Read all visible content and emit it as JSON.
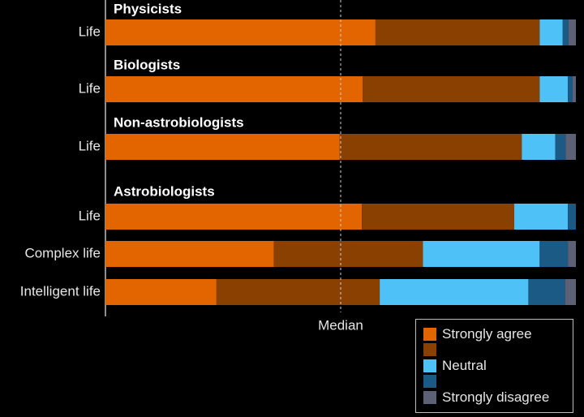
{
  "chart_data": {
    "type": "bar",
    "orientation": "horizontal",
    "stacked": true,
    "xlim": [
      0,
      100
    ],
    "categories": [
      "Physicists – Life",
      "Biologists – Life",
      "Non-astrobiologists – Life",
      "Astrobiologists – Life",
      "Astrobiologists – Complex life",
      "Astrobiologists – Intelligent life"
    ],
    "groups": [
      {
        "label": "Physicists",
        "rows": [
          {
            "label": "Life",
            "values": [
              57.4,
              34.9,
              4.9,
              1.2,
              1.6
            ]
          }
        ]
      },
      {
        "label": "Biologists",
        "rows": [
          {
            "label": "Life",
            "values": [
              54.7,
              37.6,
              6.0,
              1.0,
              0.7
            ]
          }
        ]
      },
      {
        "label": "Non-astrobiologists",
        "rows": [
          {
            "label": "Life",
            "values": [
              49.8,
              38.7,
              7.1,
              2.2,
              2.2
            ]
          }
        ]
      },
      {
        "label": "Astrobiologists",
        "rows": [
          {
            "label": "Life",
            "values": [
              54.5,
              32.4,
              11.4,
              1.7,
              0.0
            ]
          },
          {
            "label": "Complex life",
            "values": [
              35.8,
              31.7,
              24.8,
              6.0,
              1.7
            ]
          },
          {
            "label": "Intelligent life",
            "values": [
              23.6,
              34.7,
              31.6,
              7.8,
              2.3
            ]
          }
        ]
      }
    ],
    "series": [
      {
        "name": "Strongly agree",
        "color": "#e36500"
      },
      {
        "name": "",
        "color": "#8a4000"
      },
      {
        "name": "Neutral",
        "color": "#4ec1f7"
      },
      {
        "name": "",
        "color": "#1a5a85"
      },
      {
        "name": "Strongly disagree",
        "color": "#5d6175"
      }
    ],
    "median": {
      "label": "Median",
      "value": 50
    }
  }
}
